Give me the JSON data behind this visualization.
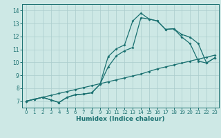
{
  "xlabel": "Humidex (Indice chaleur)",
  "bg_color": "#cde8e5",
  "grid_color": "#aacccc",
  "line_color": "#1a7070",
  "xlim": [
    -0.5,
    23.5
  ],
  "ylim": [
    6.5,
    14.5
  ],
  "xticks": [
    0,
    1,
    2,
    3,
    4,
    5,
    6,
    7,
    8,
    9,
    10,
    11,
    12,
    13,
    14,
    15,
    16,
    17,
    18,
    19,
    20,
    21,
    22,
    23
  ],
  "yticks": [
    7,
    8,
    9,
    10,
    11,
    12,
    13,
    14
  ],
  "line1_x": [
    0,
    1,
    2,
    3,
    4,
    5,
    6,
    7,
    8,
    9,
    10,
    11,
    12,
    13,
    14,
    15,
    16,
    17,
    18,
    19,
    20,
    21,
    22,
    23
  ],
  "line1_y": [
    7.0,
    7.15,
    7.3,
    7.45,
    7.6,
    7.75,
    7.9,
    8.05,
    8.2,
    8.35,
    8.5,
    8.65,
    8.8,
    8.95,
    9.1,
    9.3,
    9.5,
    9.65,
    9.8,
    9.95,
    10.1,
    10.25,
    10.4,
    10.55
  ],
  "line2_x": [
    0,
    1,
    2,
    3,
    4,
    5,
    6,
    7,
    8,
    9,
    10,
    11,
    12,
    13,
    14,
    15,
    16,
    17,
    18,
    19,
    20,
    21,
    22,
    23
  ],
  "line2_y": [
    7.0,
    7.15,
    7.3,
    7.1,
    6.9,
    7.3,
    7.5,
    7.55,
    7.65,
    8.3,
    10.45,
    11.05,
    11.35,
    13.2,
    13.8,
    13.35,
    13.2,
    12.55,
    12.6,
    11.95,
    11.45,
    10.1,
    9.95,
    10.35
  ],
  "line3_x": [
    0,
    1,
    2,
    3,
    4,
    5,
    6,
    7,
    8,
    9,
    10,
    11,
    12,
    13,
    14,
    15,
    16,
    17,
    18,
    19,
    20,
    21,
    22,
    23
  ],
  "line3_y": [
    7.0,
    7.15,
    7.3,
    7.1,
    6.9,
    7.3,
    7.5,
    7.55,
    7.65,
    8.3,
    9.65,
    10.5,
    10.9,
    11.15,
    13.45,
    13.35,
    13.2,
    12.55,
    12.6,
    12.15,
    11.95,
    11.45,
    9.95,
    10.35
  ]
}
